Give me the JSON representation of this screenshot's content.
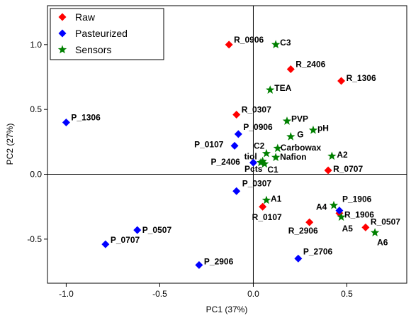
{
  "chart_data": {
    "type": "scatter",
    "xlabel": "PC1 (37%)",
    "ylabel": "PC2 (27%)",
    "xlim": [
      -1.1,
      0.82
    ],
    "ylim": [
      -0.84,
      1.3
    ],
    "xticks": [
      -1.0,
      -0.5,
      0.0,
      0.5
    ],
    "xtick_labels": [
      "-1.0",
      "-0.5",
      "0.0",
      "0.5"
    ],
    "yticks": [
      -0.5,
      0.0,
      0.5,
      1.0
    ],
    "ytick_labels": [
      "-0.5",
      "0.0",
      "0.5",
      "1.0"
    ],
    "reference_lines": {
      "x": 0,
      "y": 0
    },
    "grid": false,
    "legend_position": "top-left",
    "series": [
      {
        "name": "Raw",
        "marker": "diamond",
        "color": "#ff0000",
        "points": [
          {
            "x": -0.13,
            "y": 1.0,
            "label": "R_0906"
          },
          {
            "x": 0.2,
            "y": 0.81,
            "label": "R_2406"
          },
          {
            "x": 0.47,
            "y": 0.72,
            "label": "R_1306"
          },
          {
            "x": -0.09,
            "y": 0.46,
            "label": "R_0307"
          },
          {
            "x": 0.4,
            "y": 0.03,
            "label": "R_0707"
          },
          {
            "x": 0.05,
            "y": -0.25,
            "label": "R_0107"
          },
          {
            "x": 0.46,
            "y": -0.3,
            "label": "R_1906"
          },
          {
            "x": 0.3,
            "y": -0.37,
            "label": "R_2906"
          },
          {
            "x": 0.6,
            "y": -0.41,
            "label": "R_0507"
          }
        ]
      },
      {
        "name": "Pasteurized",
        "marker": "diamond",
        "color": "#0000ff",
        "points": [
          {
            "x": -1.0,
            "y": 0.4,
            "label": "P_1306"
          },
          {
            "x": -0.08,
            "y": 0.31,
            "label": "P_0906"
          },
          {
            "x": -0.1,
            "y": 0.22,
            "label": "P_0107"
          },
          {
            "x": 0.0,
            "y": 0.09,
            "label": "P_2406"
          },
          {
            "x": -0.09,
            "y": -0.13,
            "label": "P_0307"
          },
          {
            "x": 0.46,
            "y": -0.28,
            "label": "P_1906"
          },
          {
            "x": -0.62,
            "y": -0.43,
            "label": "P_0507"
          },
          {
            "x": -0.79,
            "y": -0.54,
            "label": "P_0707"
          },
          {
            "x": 0.24,
            "y": -0.65,
            "label": "P_2706"
          },
          {
            "x": -0.29,
            "y": -0.7,
            "label": "P_2906"
          }
        ]
      },
      {
        "name": "Sensors",
        "marker": "star",
        "color": "#008000",
        "points": [
          {
            "x": 0.12,
            "y": 1.0,
            "label": "C3"
          },
          {
            "x": 0.09,
            "y": 0.65,
            "label": "TEA"
          },
          {
            "x": 0.18,
            "y": 0.41,
            "label": "PVP"
          },
          {
            "x": 0.32,
            "y": 0.34,
            "label": "pH"
          },
          {
            "x": 0.2,
            "y": 0.29,
            "label": "G"
          },
          {
            "x": 0.13,
            "y": 0.2,
            "label": "Carbowax"
          },
          {
            "x": 0.42,
            "y": 0.14,
            "label": "A2"
          },
          {
            "x": 0.07,
            "y": 0.16,
            "label": "C2"
          },
          {
            "x": 0.12,
            "y": 0.13,
            "label": "Nafion"
          },
          {
            "x": 0.05,
            "y": 0.1,
            "label": "tiol"
          },
          {
            "x": 0.06,
            "y": 0.08,
            "label": "C1"
          },
          {
            "x": 0.04,
            "y": 0.09,
            "label": "Pcts"
          },
          {
            "x": 0.07,
            "y": -0.2,
            "label": "A1"
          },
          {
            "x": 0.43,
            "y": -0.24,
            "label": "A4"
          },
          {
            "x": 0.47,
            "y": -0.33,
            "label": "A5"
          },
          {
            "x": 0.65,
            "y": -0.45,
            "label": "A6"
          }
        ]
      }
    ]
  }
}
